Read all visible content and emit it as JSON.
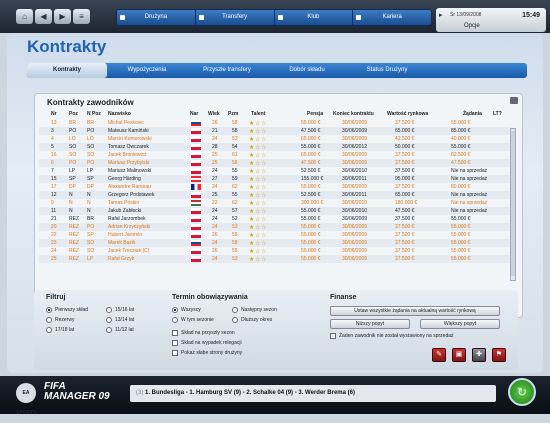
{
  "topnav": {
    "home_icon": "home-icon",
    "back_icon": "back-icon",
    "forward_icon": "forward-icon",
    "items": [
      "Drużyna",
      "Transfery",
      "Klub",
      "Kariera"
    ]
  },
  "datetime": {
    "date": "Śr 13/09/2008",
    "time": "15:49",
    "options": "Opcje"
  },
  "page": {
    "title": "Kontrakty"
  },
  "tabs": [
    "Kontrakty",
    "Wypożyczenia",
    "Przyszłe transfery",
    "Dobór składu",
    "Status Drużyny"
  ],
  "table": {
    "title": "Kontrakty zawodników",
    "headers": {
      "nr": "Nr",
      "poz": "Poz",
      "npoz": "N Poz",
      "name": "Nazwisko",
      "nat": "Nar",
      "age": "Wiek",
      "pzm": "Pzm",
      "talent": "Talent",
      "salary": "Pensja",
      "end": "Koniec kontraktu",
      "value": "Wartość rynkowa",
      "demand": "Żądania",
      "lt": "LT?"
    },
    "rows": [
      {
        "nr": "13",
        "poz": "BR",
        "npoz": "BR",
        "name": "Michal Peskovic",
        "age": "26",
        "pzm": "58",
        "stars": 3,
        "salary": "55.000 €",
        "end": "30/06/2009",
        "value": "37.500 €",
        "demand": "55.000 €",
        "style": "orange",
        "flag": "sk"
      },
      {
        "nr": "3",
        "poz": "PO",
        "npoz": "PO",
        "name": "Mateusz Kamiński",
        "age": "21",
        "pzm": "58",
        "stars": 3,
        "salary": "47.500 €",
        "end": "30/06/2009",
        "value": "65.000 €",
        "demand": "85.000 €",
        "style": "",
        "flag": "pl"
      },
      {
        "nr": "4",
        "poz": "LO",
        "npoz": "LO",
        "name": "Marcin Komorowski",
        "age": "24",
        "pzm": "53",
        "stars": 3,
        "salary": "65.000 €",
        "end": "30/06/2009",
        "value": "42.500 €",
        "demand": "40.000 €",
        "style": "orange",
        "flag": "pl"
      },
      {
        "nr": "5",
        "poz": "SO",
        "npoz": "SO",
        "name": "Tomasz Owczarek",
        "age": "28",
        "pzm": "54",
        "stars": 3,
        "salary": "55.000 €",
        "end": "30/06/2012",
        "value": "50.000 €",
        "demand": "55.000 €",
        "style": "",
        "flag": "pl"
      },
      {
        "nr": "16",
        "poz": "SO",
        "npoz": "SO",
        "name": "Jacek Broniewicz",
        "age": "25",
        "pzm": "61",
        "stars": 3,
        "salary": "65.000 €",
        "end": "30/06/2009",
        "value": "37.500 €",
        "demand": "82.500 €",
        "style": "orange",
        "flag": "pl"
      },
      {
        "nr": "6",
        "poz": "PO",
        "npoz": "PO",
        "name": "Mariusz Przybylski",
        "age": "25",
        "pzm": "56",
        "stars": 3,
        "salary": "47.500 €",
        "end": "30/06/2009",
        "value": "37.500 €",
        "demand": "47.500 €",
        "style": "orange",
        "flag": "pl"
      },
      {
        "nr": "7",
        "poz": "LP",
        "npoz": "LP",
        "name": "Mariusz Malinowski",
        "age": "24",
        "pzm": "55",
        "stars": 3,
        "salary": "52.500 €",
        "end": "30/06/2010",
        "value": "37.500 €",
        "demand": "Nie na sprzedaż",
        "style": "",
        "flag": "pl"
      },
      {
        "nr": "15",
        "poz": "SP",
        "npoz": "SP",
        "name": "Georg Härding",
        "age": "27",
        "pzm": "59",
        "stars": 3,
        "salary": "155.000 €",
        "end": "30/06/2011",
        "value": "95.000 €",
        "demand": "Nie na sprzedaż",
        "style": "",
        "flag": "at"
      },
      {
        "nr": "17",
        "poz": "DP",
        "npoz": "DP",
        "name": "Alexandre Rameau",
        "age": "24",
        "pzm": "62",
        "stars": 3,
        "salary": "55.000 €",
        "end": "30/06/2009",
        "value": "37.500 €",
        "demand": "80.000 €",
        "style": "orange",
        "flag": "fr"
      },
      {
        "nr": "12",
        "poz": "N",
        "npoz": "N",
        "name": "Grzegorz Podstawek",
        "age": "25",
        "pzm": "55",
        "stars": 3,
        "salary": "52.500 €",
        "end": "30/06/2011",
        "value": "65.000 €",
        "demand": "Nie na sprzedaż",
        "style": "",
        "flag": "pl"
      },
      {
        "nr": "9",
        "poz": "N",
        "npoz": "N",
        "name": "Tamas Priskin",
        "age": "22",
        "pzm": "62",
        "stars": 3,
        "salary": "300.000 €",
        "end": "30/06/2010",
        "value": "180.000 €",
        "demand": "Nie na sprzedaż",
        "style": "orange",
        "flag": "hu"
      },
      {
        "nr": "11",
        "poz": "N",
        "npoz": "N",
        "name": "Jakub Zabłocki",
        "age": "24",
        "pzm": "57",
        "stars": 3,
        "salary": "55.000 €",
        "end": "30/06/2010",
        "value": "47.500 €",
        "demand": "Nie na sprzedaż",
        "style": "",
        "flag": "pl"
      },
      {
        "nr": "21",
        "poz": "REZ",
        "npoz": "BR",
        "name": "Rafał Jarzombek",
        "age": "24",
        "pzm": "52",
        "stars": 3,
        "salary": "55.000 €",
        "end": "30/06/2009",
        "value": "37.500 €",
        "demand": "55.000 €",
        "style": "",
        "flag": "pl"
      },
      {
        "nr": "20",
        "poz": "REZ",
        "npoz": "PO",
        "name": "Adrian Krzyczyński",
        "age": "24",
        "pzm": "53",
        "stars": 3,
        "salary": "55.000 €",
        "end": "30/06/2009",
        "value": "37.500 €",
        "demand": "55.000 €",
        "style": "orange",
        "flag": "pl"
      },
      {
        "nr": "22",
        "poz": "REZ",
        "npoz": "SP",
        "name": "Hubert Jaromin",
        "age": "26",
        "pzm": "55",
        "stars": 3,
        "salary": "55.000 €",
        "end": "30/06/2009",
        "value": "37.500 €",
        "demand": "55.000 €",
        "style": "orange",
        "flag": "pl"
      },
      {
        "nr": "23",
        "poz": "REZ",
        "npoz": "SO",
        "name": "Marek Bazik",
        "age": "24",
        "pzm": "58",
        "stars": 3,
        "salary": "55.000 €",
        "end": "30/06/2009",
        "value": "37.500 €",
        "demand": "55.000 €",
        "style": "orange",
        "flag": "sk"
      },
      {
        "nr": "24",
        "poz": "REZ",
        "npoz": "SO",
        "name": "Jacek Trecziak (C)",
        "age": "26",
        "pzm": "55",
        "stars": 3,
        "salary": "55.000 €",
        "end": "30/06/2009",
        "value": "37.500 €",
        "demand": "55.000 €",
        "style": "orange",
        "flag": "pl"
      },
      {
        "nr": "25",
        "poz": "REZ",
        "npoz": "LP",
        "name": "Rafał Grzyb",
        "age": "24",
        "pzm": "53",
        "stars": 3,
        "salary": "55.000 €",
        "end": "30/06/2009",
        "value": "37.500 €",
        "demand": "55.000 €",
        "style": "orange",
        "flag": "pl"
      }
    ]
  },
  "filter": {
    "title": "Filtruj",
    "options": [
      "Pierwszy skład",
      "Rezerwy",
      "17/18 lat",
      "15/16 lat",
      "13/14 lat",
      "11/12 lat"
    ]
  },
  "term": {
    "title": "Termin obowiązywania",
    "options": [
      "Wszyscy",
      "W tym sezonie",
      "Następny sezon",
      "Dłuższy okres"
    ],
    "checks": [
      "Skład na przyszły sezon",
      "Skład na wypadek relegacji",
      "Pokaż słabe strony drużyny"
    ]
  },
  "finance": {
    "title": "Finanse",
    "btn_set": "Ustaw wszystkie żądania na aktualną wartość rynkową",
    "btn_low": "Niższy popyt",
    "btn_high": "Większy popyt",
    "note": "Żaden zawodnik nie został wystawiony na sprzedaż"
  },
  "footer": {
    "logo": "EA SPORTS",
    "brand1": "FIFA",
    "brand2": "MANAGER 09",
    "ticker_num": "(3)",
    "ticker": "1. Bundesliga - 1. Hamburg SV (9) - 2. Schalke 04 (9) - 3. Werder Brema (6)"
  },
  "colors": {
    "accent": "#1f63b4",
    "orange_row": "#e07818",
    "selected_row": "#2a6fc2"
  }
}
